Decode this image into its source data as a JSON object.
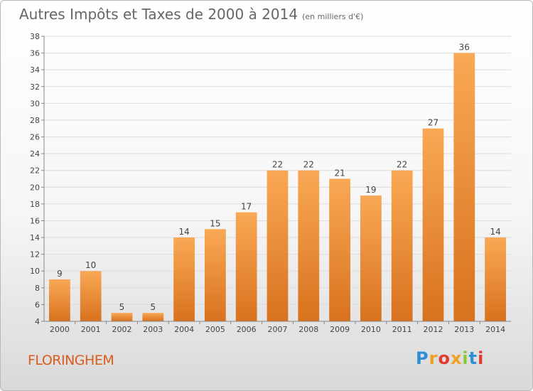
{
  "title": "Autres Impôts et Taxes de 2000 à 2014",
  "subtitle": "(en milliers d'€)",
  "place": "FLORINGHEM",
  "logo": {
    "text": "Proxiti",
    "letters": [
      {
        "ch": "P",
        "color": "#2e8fd6"
      },
      {
        "ch": "r",
        "color": "#f0a020"
      },
      {
        "ch": "o",
        "color": "#e23a2e"
      },
      {
        "ch": "x",
        "color": "#f0a020"
      },
      {
        "ch": "i",
        "color": "#8cc63f"
      },
      {
        "ch": "t",
        "color": "#2e8fd6"
      },
      {
        "ch": "i",
        "color": "#e23a2e"
      }
    ]
  },
  "colors": {
    "bar_top": "#f9a855",
    "bar_bottom": "#d8721e",
    "grid": "#dcdcdc",
    "axis": "#888888",
    "label": "#444444"
  },
  "chart_data": {
    "type": "bar",
    "categories": [
      "2000",
      "2001",
      "2002",
      "2003",
      "2004",
      "2005",
      "2006",
      "2007",
      "2008",
      "2009",
      "2010",
      "2011",
      "2012",
      "2013",
      "2014"
    ],
    "values": [
      9,
      10,
      5,
      5,
      14,
      15,
      17,
      22,
      22,
      21,
      19,
      22,
      27,
      36,
      14
    ],
    "ylim": [
      4,
      38
    ],
    "yticks": [
      4,
      6,
      8,
      10,
      12,
      14,
      16,
      18,
      20,
      22,
      24,
      26,
      28,
      30,
      32,
      34,
      36,
      38
    ],
    "grid": true,
    "data_labels": true
  }
}
